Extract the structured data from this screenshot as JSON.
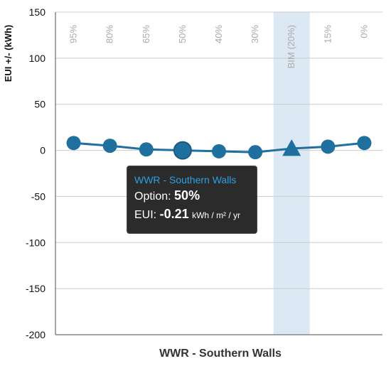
{
  "chart_data": {
    "type": "line",
    "xlabel": "WWR - Southern Walls",
    "ylabel": "EUI +/- (kWh)",
    "ylim": [
      -200,
      150
    ],
    "yticks": [
      150,
      100,
      50,
      0,
      -50,
      -100,
      -150,
      -200
    ],
    "categories": [
      "95%",
      "80%",
      "65%",
      "50%",
      "40%",
      "30%",
      "BIM (20%)",
      "15%",
      "0%"
    ],
    "values": [
      8,
      5,
      1,
      0,
      -1,
      -2,
      2,
      4,
      8
    ],
    "highlighted_category": "BIM (20%)",
    "selected_category": "50%",
    "grid": true,
    "colors": {
      "line": "#1f6f9f",
      "marker": "#1f6f9f",
      "band": "#dce9f5",
      "grid": "#cccccc"
    }
  },
  "tooltip": {
    "title": "WWR - Southern Walls",
    "option_label": "Option:",
    "option_value": "50%",
    "eui_label": "EUI:",
    "eui_value": "-0.21",
    "eui_unit": "kWh / m² / yr"
  }
}
